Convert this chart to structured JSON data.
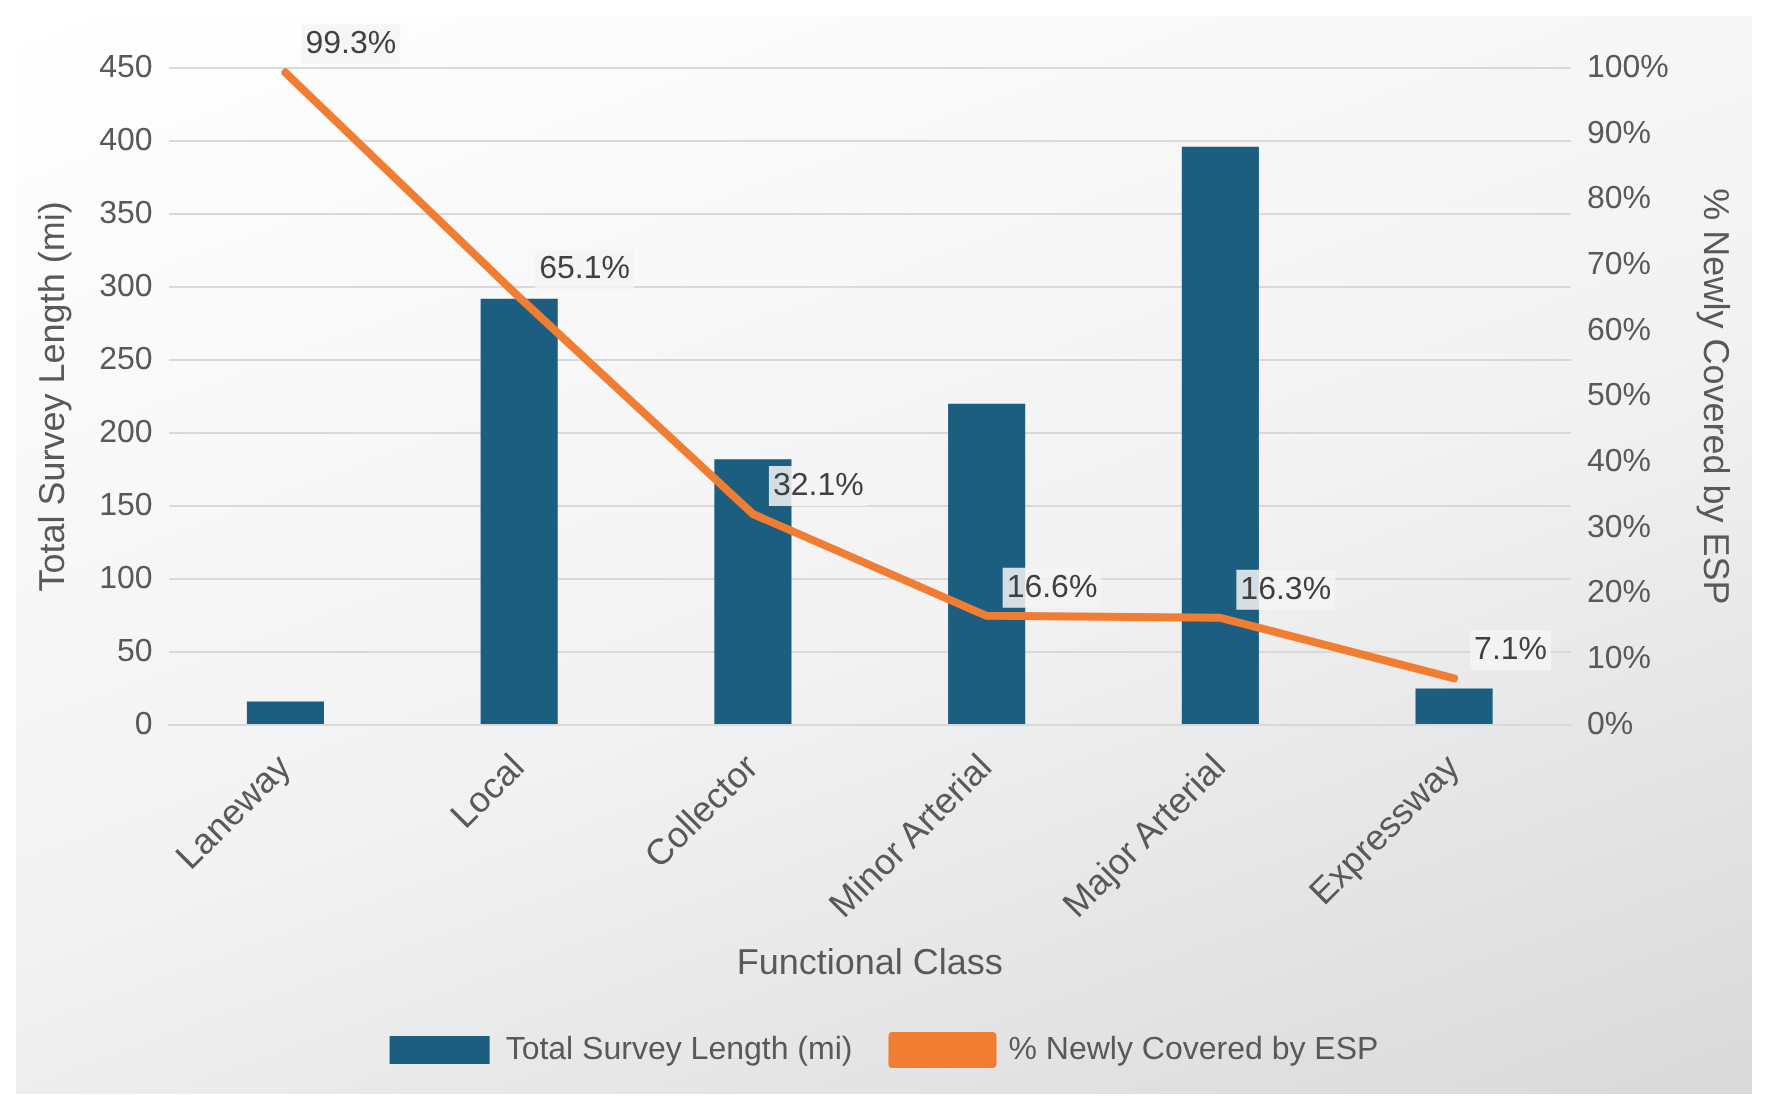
{
  "chart_data": {
    "type": "bar",
    "xlabel": "Functional Class",
    "ylabel": "Total Survey Length (mi)",
    "y2label": "% Newly Covered by ESP",
    "categories": [
      "Laneway",
      "Local",
      "Collector",
      "Minor Arterial",
      "Major Arterial",
      "Expressway"
    ],
    "series": [
      {
        "name": "Total Survey Length (mi)",
        "color": "#1b5e80",
        "values": [
          16,
          292,
          182,
          220,
          396,
          25
        ]
      },
      {
        "name": "% Newly Covered by ESP",
        "type": "line",
        "axis": "y2",
        "color": "#f07d32",
        "values": [
          99.3,
          65.1,
          32.1,
          16.6,
          16.3,
          7.1
        ],
        "value_labels": [
          "99.3%",
          "65.1%",
          "32.1%",
          "16.6%",
          "16.3%",
          "7.1%"
        ]
      }
    ],
    "ylim": [
      0,
      450
    ],
    "yticks": [
      0,
      50,
      100,
      150,
      200,
      250,
      300,
      350,
      400,
      450
    ],
    "y2lim": [
      0,
      100
    ],
    "y2ticks": [
      {
        "value": 0,
        "label": "0%"
      },
      {
        "value": 10,
        "label": "10%"
      },
      {
        "value": 20,
        "label": "20%"
      },
      {
        "value": 30,
        "label": "30%"
      },
      {
        "value": 40,
        "label": "40%"
      },
      {
        "value": 50,
        "label": "50%"
      },
      {
        "value": 60,
        "label": "60%"
      },
      {
        "value": 70,
        "label": "70%"
      },
      {
        "value": 80,
        "label": "80%"
      },
      {
        "value": 90,
        "label": "90%"
      },
      {
        "value": 100,
        "label": "100%"
      }
    ],
    "grid": "y",
    "legend": "bottom",
    "marker": "none",
    "line_style": "solid"
  }
}
